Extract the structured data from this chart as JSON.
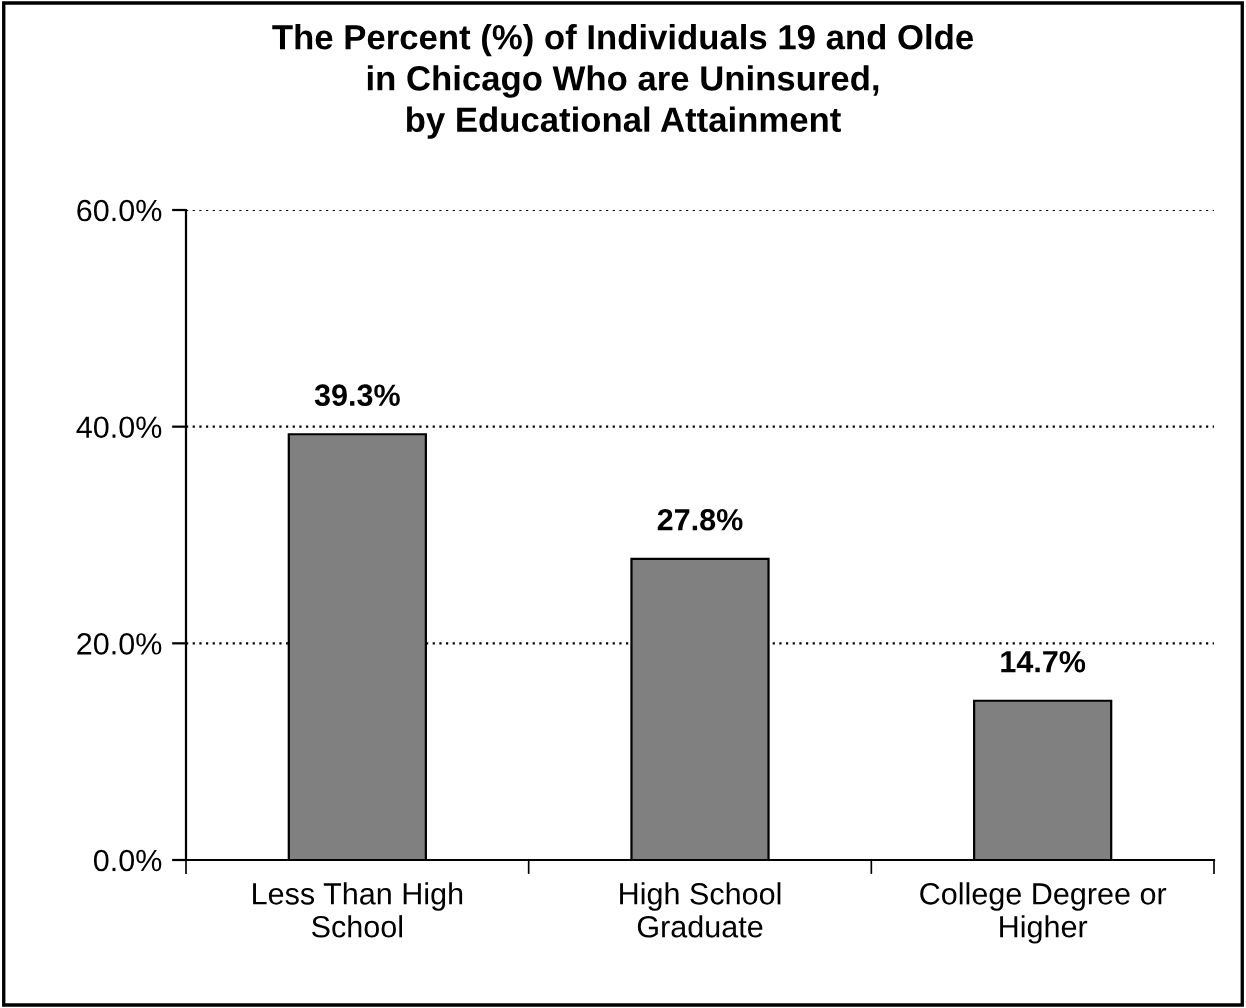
{
  "chart_data": {
    "type": "bar",
    "title": "The Percent (%) of Individuals 19 and Olde\nin Chicago Who are Uninsured,\nby Educational Attainment",
    "categories": [
      "Less Than High\nSchool",
      "High School\nGraduate",
      "College Degree or\nHigher"
    ],
    "values": [
      39.3,
      27.8,
      14.7
    ],
    "color": "#808080",
    "value_labels": [
      "39.3%",
      "27.8%",
      "14.7%"
    ],
    "ylim": [
      0,
      60
    ],
    "yticks": [
      {
        "value": 0,
        "label": "0.0%"
      },
      {
        "value": 20,
        "label": "20.0%"
      },
      {
        "value": 40,
        "label": "40.0%"
      },
      {
        "value": 60,
        "label": "60.0%"
      }
    ],
    "grid": "y"
  }
}
